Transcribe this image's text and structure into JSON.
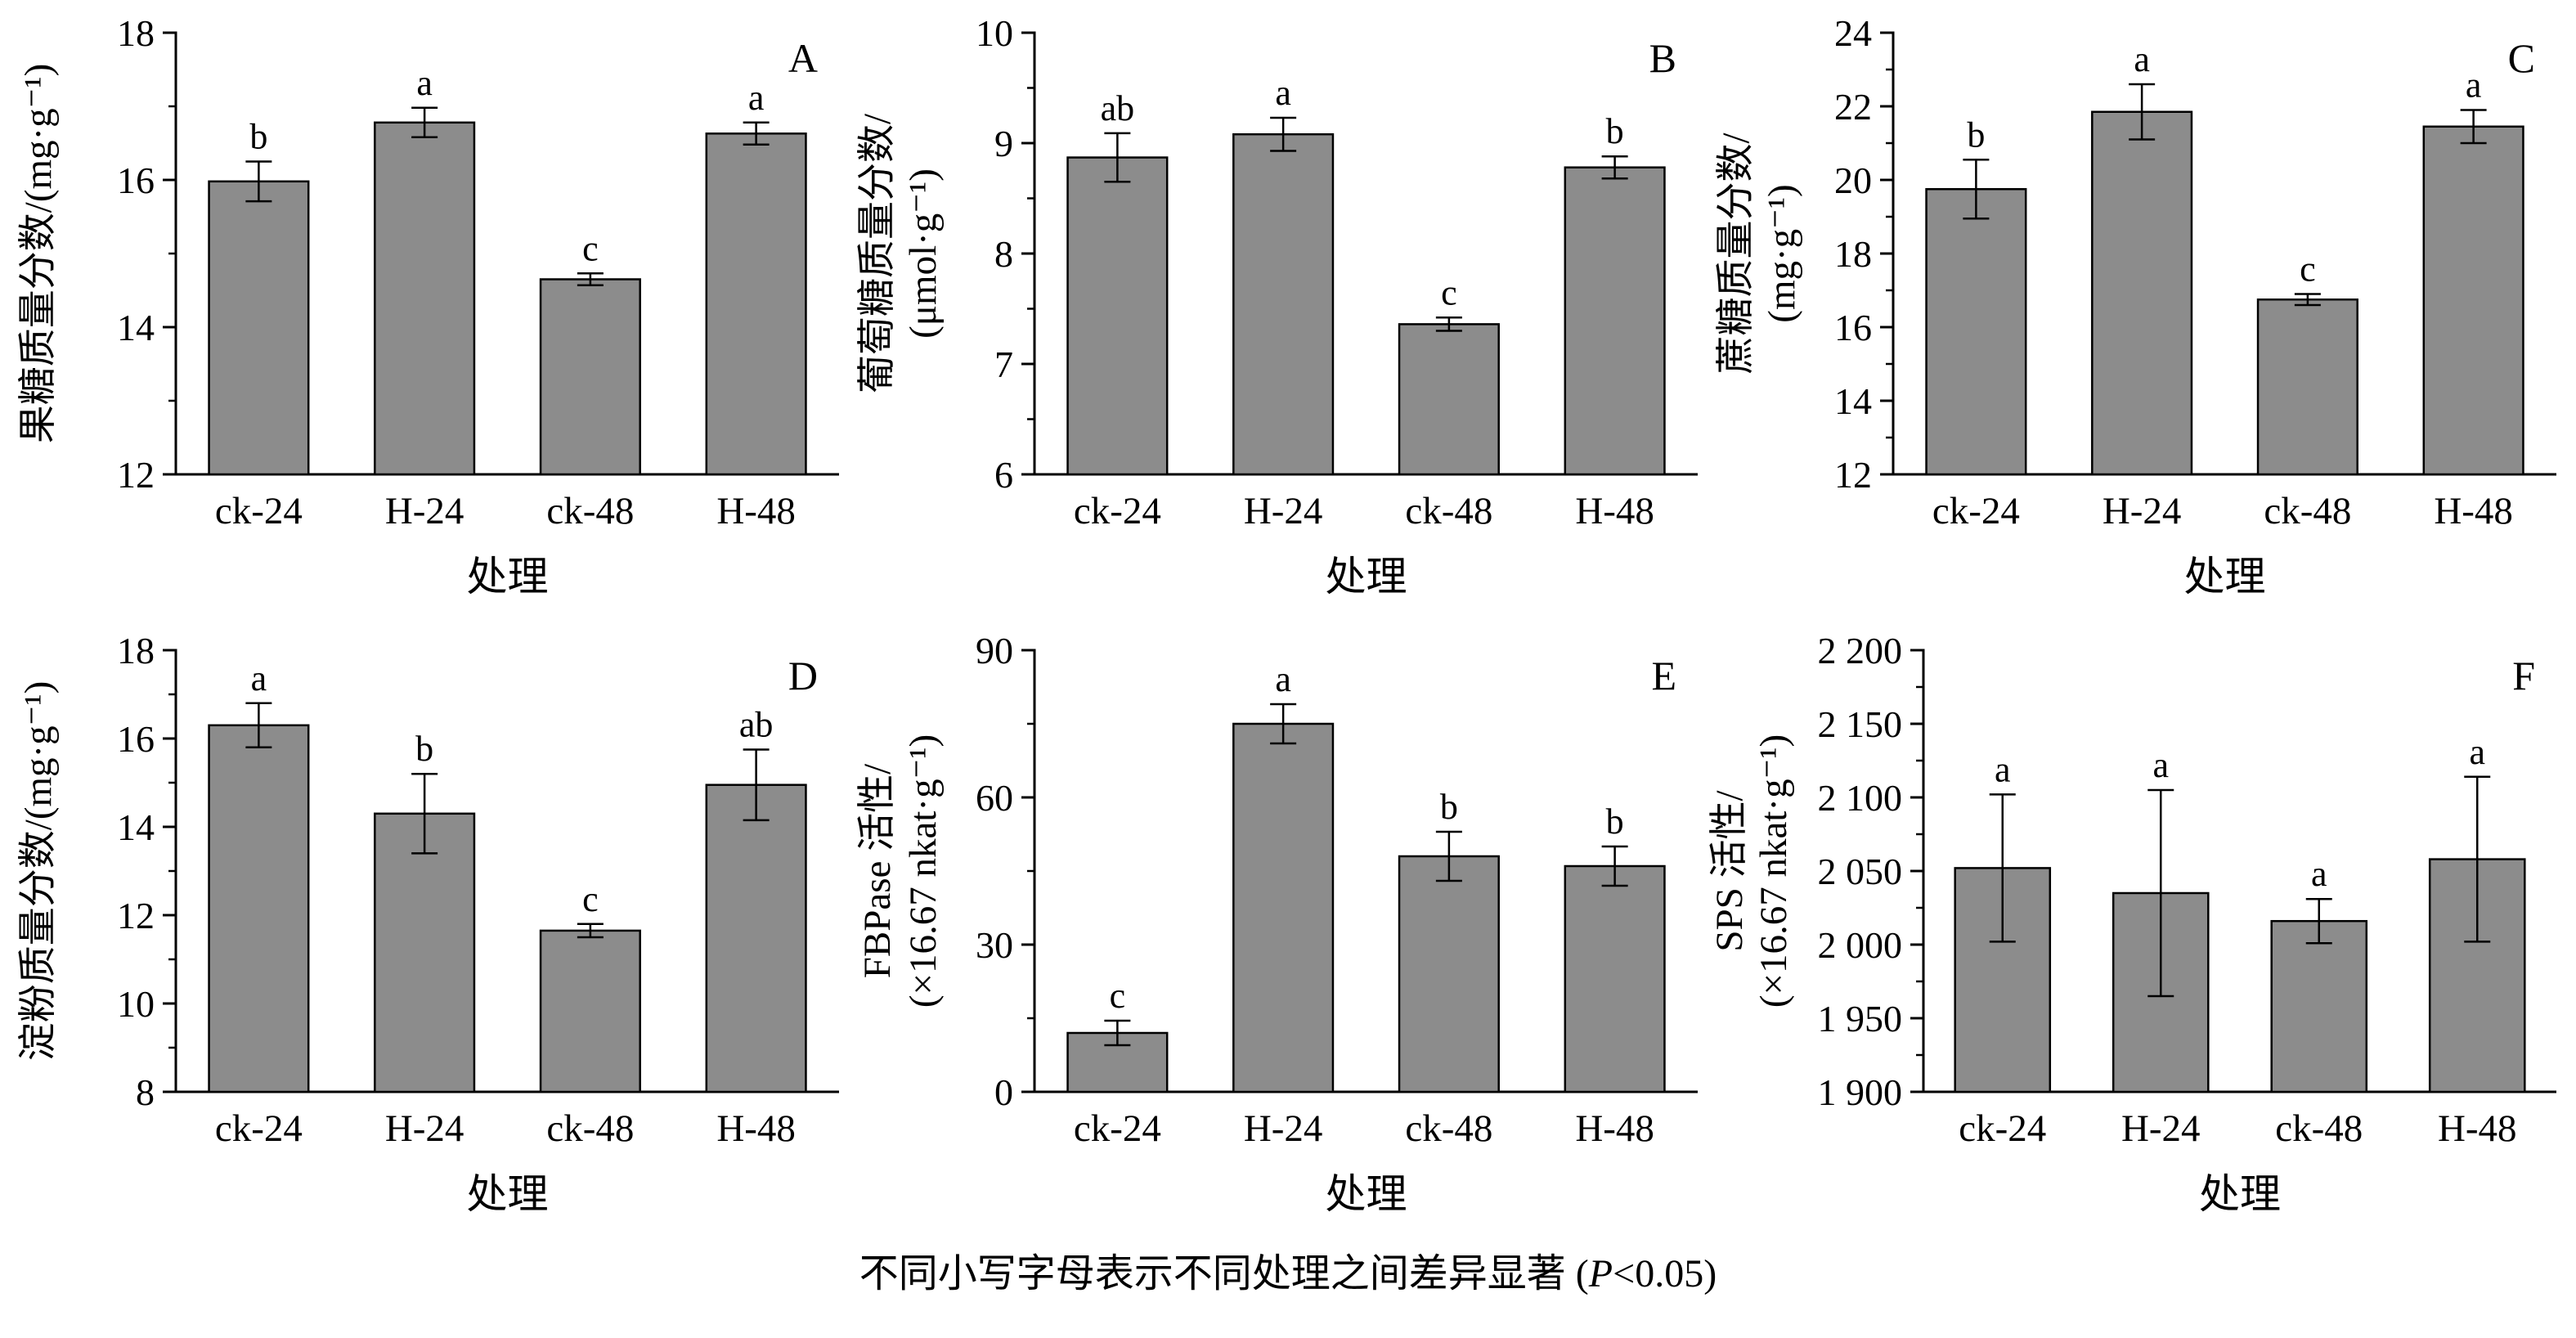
{
  "figure": {
    "caption_prefix": "不同小写字母表示不同处理之间差异显著 (",
    "caption_p": "P",
    "caption_suffix": "<0.05)"
  },
  "style": {
    "bar_fill": "#8c8c8c",
    "axis_color": "#000000"
  },
  "chart_data": [
    {
      "type": "bar",
      "panel": "A",
      "ylabel_lines": [
        "果糖质量分数/(mg·g⁻¹)"
      ],
      "xlabel": "处理",
      "categories": [
        "ck-24",
        "H-24",
        "ck-48",
        "H-48"
      ],
      "values": [
        15.98,
        16.78,
        14.65,
        16.63
      ],
      "errors": [
        0.27,
        0.2,
        0.08,
        0.15
      ],
      "sig_letters": [
        "b",
        "a",
        "c",
        "a"
      ],
      "ylim": [
        12,
        18
      ],
      "yticks": [
        12,
        14,
        16,
        18
      ],
      "ytick_labels": [
        "12",
        "14",
        "16",
        "18"
      ],
      "margin_left": 215
    },
    {
      "type": "bar",
      "panel": "B",
      "ylabel_lines": [
        "葡萄糖质量分数/",
        "(μmol·g⁻¹)"
      ],
      "xlabel": "处理",
      "categories": [
        "ck-24",
        "H-24",
        "ck-48",
        "H-48"
      ],
      "values": [
        8.87,
        9.08,
        7.36,
        8.78
      ],
      "errors": [
        0.22,
        0.15,
        0.06,
        0.1
      ],
      "sig_letters": [
        "ab",
        "a",
        "c",
        "b"
      ],
      "ylim": [
        6,
        10
      ],
      "yticks": [
        6,
        7,
        8,
        9,
        10
      ],
      "ytick_labels": [
        "6",
        "7",
        "8",
        "9",
        "10"
      ],
      "margin_left": 215
    },
    {
      "type": "bar",
      "panel": "C",
      "ylabel_lines": [
        "蔗糖质量分数/",
        "(mg·g⁻¹)"
      ],
      "xlabel": "处理",
      "categories": [
        "ck-24",
        "H-24",
        "ck-48",
        "H-48"
      ],
      "values": [
        19.75,
        21.85,
        16.75,
        21.45
      ],
      "errors": [
        0.8,
        0.75,
        0.15,
        0.45
      ],
      "sig_letters": [
        "b",
        "a",
        "c",
        "a"
      ],
      "ylim": [
        12,
        24
      ],
      "yticks": [
        12,
        14,
        16,
        18,
        20,
        22,
        24
      ],
      "ytick_labels": [
        "12",
        "14",
        "16",
        "18",
        "20",
        "22",
        "24"
      ],
      "margin_left": 215
    },
    {
      "type": "bar",
      "panel": "D",
      "ylabel_lines": [
        "淀粉质量分数/(mg·g⁻¹)"
      ],
      "xlabel": "处理",
      "categories": [
        "ck-24",
        "H-24",
        "ck-48",
        "H-48"
      ],
      "values": [
        16.3,
        14.3,
        11.65,
        14.95
      ],
      "errors": [
        0.5,
        0.9,
        0.15,
        0.8
      ],
      "sig_letters": [
        "a",
        "b",
        "c",
        "ab"
      ],
      "ylim": [
        8,
        18
      ],
      "yticks": [
        8,
        10,
        12,
        14,
        16,
        18
      ],
      "ytick_labels": [
        "8",
        "10",
        "12",
        "14",
        "16",
        "18"
      ],
      "margin_left": 215
    },
    {
      "type": "bar",
      "panel": "E",
      "ylabel_lines": [
        "FBPase 活性/",
        "(×16.67 nkat·g⁻¹)"
      ],
      "xlabel": "处理",
      "categories": [
        "ck-24",
        "H-24",
        "ck-48",
        "H-48"
      ],
      "values": [
        12,
        75,
        48,
        46
      ],
      "errors": [
        2.5,
        4,
        5,
        4
      ],
      "sig_letters": [
        "c",
        "a",
        "b",
        "b"
      ],
      "ylim": [
        0,
        90
      ],
      "yticks": [
        0,
        30,
        60,
        90
      ],
      "ytick_labels": [
        "0",
        "30",
        "60",
        "90"
      ],
      "margin_left": 215
    },
    {
      "type": "bar",
      "panel": "F",
      "ylabel_lines": [
        "SPS 活性/",
        "(×16.67 nkat·g⁻¹)"
      ],
      "xlabel": "处理",
      "categories": [
        "ck-24",
        "H-24",
        "ck-48",
        "H-48"
      ],
      "values": [
        2052,
        2035,
        2016,
        2058
      ],
      "errors": [
        50,
        70,
        15,
        56
      ],
      "sig_letters": [
        "a",
        "a",
        "a",
        "a"
      ],
      "ylim": [
        1900,
        2200
      ],
      "yticks": [
        1900,
        1950,
        2000,
        2050,
        2100,
        2150,
        2200
      ],
      "ytick_labels": [
        "1 900",
        "1 950",
        "2 000",
        "2 050",
        "2 100",
        "2 150",
        "2 200"
      ],
      "margin_left": 252
    }
  ]
}
